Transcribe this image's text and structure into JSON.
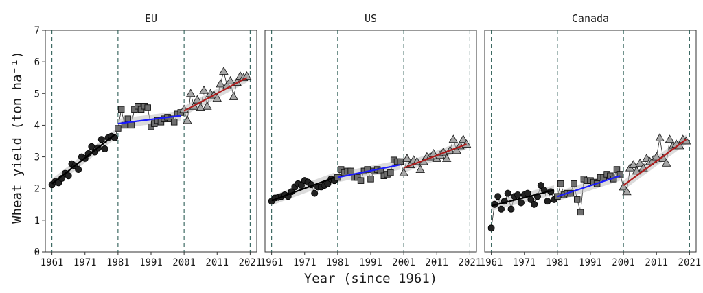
{
  "chart_data": {
    "type": "scatter",
    "xlabel": "Year (since 1961)",
    "ylabel": "Wheat yield (ton ha⁻¹)",
    "ylim": [
      0,
      7
    ],
    "xlim": [
      1959,
      2023
    ],
    "y_ticks": [
      0,
      1,
      2,
      3,
      4,
      5,
      6,
      7
    ],
    "x_ticks": [
      1961,
      1971,
      1981,
      1991,
      2001,
      2011,
      2021
    ],
    "breakpoints": [
      1961,
      1981,
      2001,
      2021
    ],
    "period_colors": [
      "#000000",
      "#1a1aff",
      "#b01c1c"
    ],
    "period_markers": [
      "circle",
      "square",
      "triangle"
    ],
    "panels": [
      {
        "name": "EU",
        "periods": [
          {
            "years": [
              1961,
              1962,
              1963,
              1964,
              1965,
              1966,
              1967,
              1968,
              1969,
              1970,
              1971,
              1972,
              1973,
              1974,
              1975,
              1976,
              1977,
              1978,
              1979,
              1980
            ],
            "values": [
              2.12,
              2.22,
              2.18,
              2.32,
              2.48,
              2.4,
              2.78,
              2.72,
              2.6,
              3.0,
              2.95,
              3.1,
              3.32,
              3.15,
              3.28,
              3.55,
              3.25,
              3.6,
              3.65,
              3.6
            ],
            "fit": [
              2.15,
              3.7
            ]
          },
          {
            "years": [
              1981,
              1982,
              1983,
              1984,
              1985,
              1986,
              1987,
              1988,
              1989,
              1990,
              1991,
              1992,
              1993,
              1994,
              1995,
              1996,
              1997,
              1998,
              1999,
              2000
            ],
            "values": [
              3.9,
              4.5,
              4.0,
              4.2,
              4.0,
              4.5,
              4.6,
              4.5,
              4.6,
              4.55,
              3.95,
              4.05,
              4.15,
              4.1,
              4.2,
              4.25,
              4.2,
              4.1,
              4.35,
              4.4
            ],
            "fit": [
              4.05,
              4.3
            ]
          },
          {
            "years": [
              2001,
              2002,
              2003,
              2004,
              2005,
              2006,
              2007,
              2008,
              2009,
              2010,
              2011,
              2012,
              2013,
              2014,
              2015,
              2016,
              2017,
              2018,
              2019,
              2020
            ],
            "values": [
              4.5,
              4.15,
              5.0,
              4.6,
              4.8,
              4.55,
              5.1,
              4.6,
              5.0,
              4.95,
              4.85,
              5.3,
              5.7,
              5.25,
              5.4,
              4.9,
              5.35,
              5.55,
              5.5,
              5.55
            ],
            "fit": [
              4.45,
              5.5
            ]
          }
        ]
      },
      {
        "name": "US",
        "periods": [
          {
            "years": [
              1961,
              1962,
              1963,
              1964,
              1965,
              1966,
              1967,
              1968,
              1969,
              1970,
              1971,
              1972,
              1973,
              1974,
              1975,
              1976,
              1977,
              1978,
              1979,
              1980
            ],
            "values": [
              1.6,
              1.7,
              1.72,
              1.75,
              1.8,
              1.75,
              1.9,
              2.05,
              2.15,
              2.1,
              2.25,
              2.2,
              2.12,
              1.85,
              2.05,
              2.05,
              2.1,
              2.15,
              2.3,
              2.25
            ],
            "fit": [
              1.62,
              2.35
            ]
          },
          {
            "years": [
              1981,
              1982,
              1983,
              1984,
              1985,
              1986,
              1987,
              1988,
              1989,
              1990,
              1991,
              1992,
              1993,
              1994,
              1995,
              1996,
              1997,
              1998,
              1999,
              2000
            ],
            "values": [
              2.35,
              2.6,
              2.5,
              2.55,
              2.55,
              2.35,
              2.35,
              2.25,
              2.55,
              2.6,
              2.3,
              2.55,
              2.6,
              2.55,
              2.4,
              2.45,
              2.5,
              2.9,
              2.85,
              2.85
            ],
            "fit": [
              2.35,
              2.75
            ]
          },
          {
            "years": [
              2001,
              2002,
              2003,
              2004,
              2005,
              2006,
              2007,
              2008,
              2009,
              2010,
              2011,
              2012,
              2013,
              2014,
              2015,
              2016,
              2017,
              2018,
              2019,
              2020
            ],
            "values": [
              2.5,
              2.95,
              2.75,
              2.9,
              2.85,
              2.6,
              2.85,
              3.0,
              3.0,
              3.1,
              2.95,
              3.05,
              3.15,
              2.95,
              3.2,
              3.55,
              3.2,
              3.35,
              3.55,
              3.4
            ],
            "fit": [
              2.65,
              3.4
            ]
          }
        ]
      },
      {
        "name": "Canada",
        "periods": [
          {
            "years": [
              1961,
              1962,
              1963,
              1964,
              1965,
              1966,
              1967,
              1968,
              1969,
              1970,
              1971,
              1972,
              1973,
              1974,
              1975,
              1976,
              1977,
              1978,
              1979,
              1980
            ],
            "values": [
              0.75,
              1.5,
              1.75,
              1.35,
              1.6,
              1.85,
              1.35,
              1.75,
              1.8,
              1.55,
              1.8,
              1.85,
              1.65,
              1.5,
              1.75,
              2.1,
              1.95,
              1.6,
              1.9,
              1.65
            ],
            "fit": [
              1.45,
              1.95
            ]
          },
          {
            "years": [
              1981,
              1982,
              1983,
              1984,
              1985,
              1986,
              1987,
              1988,
              1989,
              1990,
              1991,
              1992,
              1993,
              1994,
              1995,
              1996,
              1997,
              1998,
              1999,
              2000
            ],
            "values": [
              1.75,
              2.15,
              1.8,
              1.85,
              1.85,
              2.15,
              1.65,
              1.25,
              2.3,
              2.25,
              2.25,
              2.2,
              2.15,
              2.35,
              2.35,
              2.45,
              2.4,
              2.3,
              2.6,
              2.45
            ],
            "fit": [
              1.75,
              2.4
            ]
          },
          {
            "years": [
              2001,
              2002,
              2003,
              2004,
              2005,
              2006,
              2007,
              2008,
              2009,
              2010,
              2011,
              2012,
              2013,
              2014,
              2015,
              2016,
              2017,
              2018,
              2019,
              2020
            ],
            "values": [
              2.05,
              1.9,
              2.65,
              2.75,
              2.55,
              2.8,
              2.65,
              2.95,
              2.85,
              2.9,
              3.0,
              3.6,
              2.95,
              2.8,
              3.55,
              3.35,
              3.4,
              3.35,
              3.55,
              3.5
            ],
            "fit": [
              2.1,
              3.55
            ]
          }
        ]
      }
    ]
  }
}
